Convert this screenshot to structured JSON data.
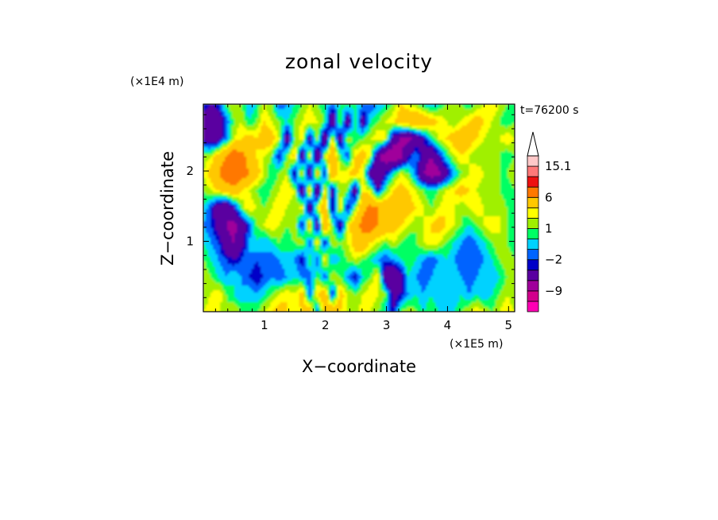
{
  "chart_data": {
    "type": "heatmap",
    "title": "zonal velocity",
    "xlabel": "X−coordinate",
    "ylabel": "Z−coordinate",
    "x_unit": "(×1E5 m)",
    "y_unit": "(×1E4 m)",
    "time_label": "t=76200 s",
    "xlim": [
      0,
      5.1
    ],
    "ylim": [
      0,
      2.95
    ],
    "x_ticks": [
      1,
      2,
      3,
      4,
      5
    ],
    "y_ticks": [
      1,
      2
    ],
    "colorbar": {
      "labels": [
        {
          "text": "15.1",
          "value": 15.1
        },
        {
          "text": "6",
          "value": 6
        },
        {
          "text": "1",
          "value": 1
        },
        {
          "text": "−2",
          "value": -2
        },
        {
          "text": "−9",
          "value": -9
        }
      ],
      "levels": [
        -15,
        -12,
        -9,
        -6,
        -3,
        -2,
        -1,
        0,
        1,
        2,
        3,
        6,
        9,
        12,
        15.1
      ],
      "colors": [
        "#ff00b4",
        "#d2008c",
        "#a0009b",
        "#5a00a0",
        "#0000c8",
        "#0064ff",
        "#00d2ff",
        "#00ff64",
        "#a0f000",
        "#ffff00",
        "#ffc800",
        "#ff7800",
        "#ee1010",
        "#ff7878",
        "#ffc8c8"
      ],
      "extend_max": true
    },
    "field": [
      [
        -2,
        -3,
        -2,
        1,
        2,
        1,
        -1,
        0,
        2,
        1,
        -2,
        -1,
        0,
        1,
        2,
        1,
        0,
        -1,
        0,
        1,
        0,
        -1,
        -2,
        -1,
        0,
        1,
        3,
        2,
        1,
        0,
        -1,
        0,
        1,
        2,
        1,
        0,
        1,
        2,
        3,
        2,
        1,
        0
      ],
      [
        -4,
        -6,
        -5,
        -2,
        1,
        2,
        0,
        1,
        3,
        2,
        1,
        0,
        1,
        2,
        3,
        2,
        1,
        -6,
        2,
        -5,
        1,
        -4,
        0,
        1,
        2,
        3,
        4,
        5,
        6,
        5,
        4,
        3,
        2,
        1,
        2,
        3,
        4,
        3,
        2,
        1,
        0,
        1
      ],
      [
        -3,
        -5,
        -4,
        -1,
        2,
        3,
        4,
        3,
        5,
        4,
        2,
        -5,
        1,
        3,
        -4,
        2,
        -6,
        3,
        -5,
        2,
        0,
        1,
        2,
        3,
        2,
        -4,
        -6,
        -7,
        -5,
        -3,
        0,
        2,
        3,
        4,
        5,
        4,
        3,
        2,
        1,
        2,
        3,
        2
      ],
      [
        1,
        2,
        4,
        6,
        8,
        7,
        5,
        3,
        2,
        1,
        -3,
        1,
        4,
        -5,
        3,
        -6,
        2,
        5,
        1,
        -2,
        3,
        4,
        2,
        -5,
        -8,
        -9,
        -7,
        -3,
        -1,
        -4,
        -6,
        -3,
        0,
        2,
        3,
        2,
        1,
        1,
        2,
        1,
        0,
        1
      ],
      [
        2,
        4,
        6,
        8,
        9,
        8,
        6,
        4,
        2,
        0,
        1,
        2,
        -4,
        3,
        -5,
        4,
        -3,
        6,
        2,
        3,
        4,
        2,
        -4,
        -6,
        -3,
        0,
        2,
        1,
        -2,
        -6,
        -8,
        -7,
        -4,
        -1,
        1,
        2,
        3,
        2,
        2,
        1,
        1,
        2
      ],
      [
        1,
        2,
        3,
        4,
        5,
        3,
        2,
        1,
        0,
        1,
        2,
        3,
        2,
        -5,
        4,
        -6,
        3,
        -4,
        2,
        1,
        -5,
        3,
        2,
        -3,
        1,
        3,
        4,
        3,
        2,
        1,
        0,
        1,
        2,
        3,
        4,
        3,
        2,
        1,
        2,
        1,
        0,
        1
      ],
      [
        0,
        -2,
        -5,
        -6,
        -3,
        1,
        3,
        2,
        1,
        2,
        3,
        2,
        1,
        3,
        -5,
        2,
        5,
        -4,
        3,
        -3,
        1,
        5,
        7,
        6,
        5,
        4,
        5,
        4,
        3,
        2,
        1,
        2,
        3,
        2,
        1,
        2,
        3,
        2,
        1,
        2,
        1,
        0
      ],
      [
        -1,
        -2,
        -4,
        -6,
        -7,
        -5,
        -2,
        1,
        2,
        3,
        2,
        1,
        2,
        -3,
        4,
        -5,
        6,
        1,
        -4,
        2,
        5,
        7,
        8,
        6,
        5,
        4,
        3,
        2,
        1,
        2,
        3,
        4,
        3,
        2,
        1,
        0,
        1,
        2,
        3,
        2,
        1,
        0
      ],
      [
        0,
        -1,
        -2,
        -5,
        -6,
        -4,
        -1,
        0,
        -1,
        0,
        1,
        0,
        1,
        2,
        -2,
        3,
        -3,
        2,
        1,
        2,
        4,
        5,
        3,
        2,
        1,
        2,
        1,
        0,
        1,
        2,
        3,
        2,
        1,
        0,
        -1,
        -2,
        -1,
        0,
        1,
        2,
        1,
        0
      ],
      [
        1,
        0,
        -1,
        -2,
        -3,
        -2,
        -1,
        -2,
        -1,
        -2,
        -1,
        0,
        -1,
        -3,
        1,
        -2,
        3,
        -1,
        0,
        1,
        2,
        1,
        0,
        -1,
        -2,
        -1,
        0,
        1,
        0,
        -1,
        -2,
        -1,
        0,
        -1,
        -2,
        -1,
        -2,
        -1,
        0,
        1,
        2,
        1
      ],
      [
        2,
        1,
        0,
        -1,
        0,
        -1,
        -2,
        -3,
        -2,
        -1,
        -2,
        -1,
        0,
        -1,
        -2,
        1,
        -2,
        2,
        1,
        -1,
        -3,
        0,
        1,
        3,
        -5,
        -6,
        -4,
        0,
        -1,
        -2,
        -1,
        0,
        -1,
        0,
        -1,
        -2,
        -1,
        0,
        -1,
        0,
        1,
        2
      ],
      [
        1,
        2,
        3,
        1,
        0,
        -1,
        0,
        -1,
        0,
        1,
        2,
        3,
        2,
        4,
        -2,
        3,
        5,
        -3,
        4,
        2,
        1,
        2,
        3,
        2,
        1,
        -4,
        -3,
        -1,
        0,
        -1,
        0,
        -1,
        0,
        -1,
        0,
        -1,
        0,
        -1,
        0,
        1,
        2,
        1
      ],
      [
        2,
        3,
        2,
        1,
        2,
        1,
        0,
        1,
        2,
        3,
        4,
        3,
        2,
        3,
        5,
        -2,
        4,
        6,
        3,
        2,
        1,
        3,
        2,
        1,
        0,
        -3,
        1,
        2,
        1,
        0,
        1,
        0,
        -1,
        0,
        1,
        2,
        3,
        2,
        1,
        2,
        3,
        2
      ]
    ]
  }
}
